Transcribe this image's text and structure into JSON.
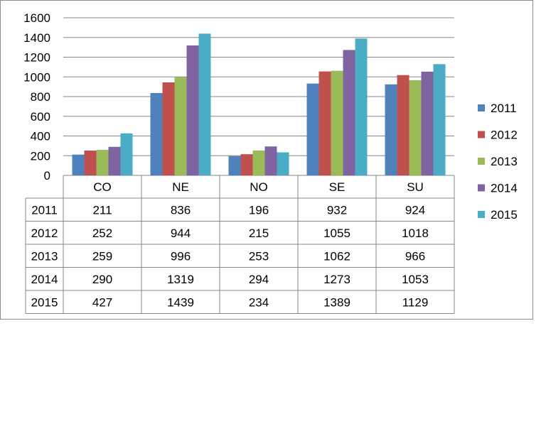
{
  "chart_data": {
    "type": "bar",
    "categories": [
      "CO",
      "NE",
      "NO",
      "SE",
      "SU"
    ],
    "series": [
      {
        "name": "2011",
        "color": "#4f81bd",
        "values": [
          211,
          836,
          196,
          932,
          924
        ]
      },
      {
        "name": "2012",
        "color": "#c0504d",
        "values": [
          252,
          944,
          215,
          1055,
          1018
        ]
      },
      {
        "name": "2013",
        "color": "#9bbb59",
        "values": [
          259,
          996,
          253,
          1062,
          966
        ]
      },
      {
        "name": "2014",
        "color": "#8064a2",
        "values": [
          290,
          1319,
          294,
          1273,
          1053
        ]
      },
      {
        "name": "2015",
        "color": "#4bacc6",
        "values": [
          427,
          1439,
          234,
          1389,
          1129
        ]
      }
    ],
    "ylim": [
      0,
      1600
    ],
    "yticks": [
      "0",
      "200",
      "400",
      "600",
      "800",
      "1000",
      "1200",
      "1400",
      "1600"
    ],
    "grid": true,
    "legend": "right",
    "data_table": true,
    "title": "",
    "xlabel": "",
    "ylabel": ""
  }
}
